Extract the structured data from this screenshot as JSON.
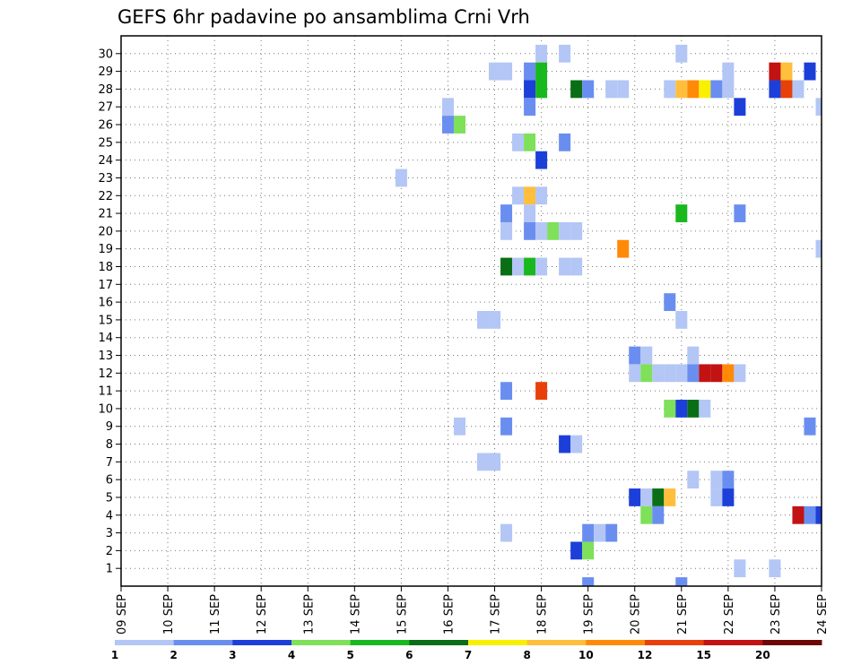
{
  "chart_data": {
    "type": "heatmap",
    "title": "GEFS 6hr padavine po ansamblima Crni Vrh",
    "x_tick_labels": [
      "09 SEP",
      "10 SEP",
      "11 SEP",
      "12 SEP",
      "13 SEP",
      "14 SEP",
      "15 SEP",
      "16 SEP",
      "17 SEP",
      "18 SEP",
      "19 SEP",
      "20 SEP",
      "21 SEP",
      "22 SEP",
      "23 SEP",
      "24 SEP"
    ],
    "y_tick_labels": [
      "1",
      "2",
      "3",
      "4",
      "5",
      "6",
      "7",
      "8",
      "9",
      "10",
      "11",
      "12",
      "13",
      "14",
      "15",
      "16",
      "17",
      "18",
      "19",
      "20",
      "21",
      "22",
      "23",
      "24",
      "25",
      "26",
      "27",
      "28",
      "29",
      "30"
    ],
    "x_step_hours": 6,
    "grid": true,
    "colorbar": {
      "levels": [
        "1",
        "2",
        "3",
        "4",
        "5",
        "6",
        "7",
        "8",
        "10",
        "12",
        "15",
        "20"
      ],
      "colors": [
        "#b3c6f5",
        "#6a8ef0",
        "#1c3fd9",
        "#7fe05a",
        "#19b81e",
        "#0a6e16",
        "#f9f000",
        "#ffbe3c",
        "#ff8a08",
        "#e8400a",
        "#c21212",
        "#6e0808"
      ]
    },
    "cells": [
      {
        "member": 30,
        "x": "18 SEP 00",
        "v": 1
      },
      {
        "member": 30,
        "x": "18 SEP 12",
        "v": 1
      },
      {
        "member": 30,
        "x": "21 SEP 00",
        "v": 1
      },
      {
        "member": 29,
        "x": "17 SEP 00",
        "v": 1
      },
      {
        "member": 29,
        "x": "17 SEP 06",
        "v": 1
      },
      {
        "member": 29,
        "x": "17 SEP 18",
        "v": 2
      },
      {
        "member": 29,
        "x": "18 SEP 00",
        "v": 5
      },
      {
        "member": 29,
        "x": "22 SEP 00",
        "v": 1
      },
      {
        "member": 29,
        "x": "23 SEP 00",
        "v": 15
      },
      {
        "member": 29,
        "x": "23 SEP 06",
        "v": 8
      },
      {
        "member": 29,
        "x": "23 SEP 18",
        "v": 3
      },
      {
        "member": 28,
        "x": "17 SEP 18",
        "v": 3
      },
      {
        "member": 28,
        "x": "18 SEP 00",
        "v": 5
      },
      {
        "member": 28,
        "x": "18 SEP 18",
        "v": 6
      },
      {
        "member": 28,
        "x": "19 SEP 00",
        "v": 2
      },
      {
        "member": 28,
        "x": "19 SEP 12",
        "v": 1
      },
      {
        "member": 28,
        "x": "19 SEP 18",
        "v": 1
      },
      {
        "member": 28,
        "x": "20 SEP 18",
        "v": 1
      },
      {
        "member": 28,
        "x": "21 SEP 00",
        "v": 8
      },
      {
        "member": 28,
        "x": "21 SEP 06",
        "v": 10
      },
      {
        "member": 28,
        "x": "21 SEP 12",
        "v": 7
      },
      {
        "member": 28,
        "x": "21 SEP 18",
        "v": 2
      },
      {
        "member": 28,
        "x": "22 SEP 00",
        "v": 1
      },
      {
        "member": 28,
        "x": "23 SEP 00",
        "v": 3
      },
      {
        "member": 28,
        "x": "23 SEP 06",
        "v": 12
      },
      {
        "member": 28,
        "x": "23 SEP 12",
        "v": 1
      },
      {
        "member": 27,
        "x": "16 SEP 00",
        "v": 1
      },
      {
        "member": 27,
        "x": "17 SEP 18",
        "v": 2
      },
      {
        "member": 27,
        "x": "22 SEP 06",
        "v": 3
      },
      {
        "member": 27,
        "x": "24 SEP 00",
        "v": 1
      },
      {
        "member": 26,
        "x": "16 SEP 00",
        "v": 2
      },
      {
        "member": 26,
        "x": "16 SEP 06",
        "v": 4
      },
      {
        "member": 25,
        "x": "17 SEP 12",
        "v": 1
      },
      {
        "member": 25,
        "x": "17 SEP 18",
        "v": 4
      },
      {
        "member": 25,
        "x": "18 SEP 12",
        "v": 2
      },
      {
        "member": 24,
        "x": "18 SEP 00",
        "v": 3
      },
      {
        "member": 23,
        "x": "15 SEP 00",
        "v": 1
      },
      {
        "member": 22,
        "x": "17 SEP 12",
        "v": 1
      },
      {
        "member": 22,
        "x": "17 SEP 18",
        "v": 8
      },
      {
        "member": 22,
        "x": "18 SEP 00",
        "v": 1
      },
      {
        "member": 21,
        "x": "17 SEP 06",
        "v": 2
      },
      {
        "member": 21,
        "x": "17 SEP 18",
        "v": 1
      },
      {
        "member": 21,
        "x": "21 SEP 00",
        "v": 5
      },
      {
        "member": 21,
        "x": "22 SEP 06",
        "v": 2
      },
      {
        "member": 20,
        "x": "17 SEP 06",
        "v": 1
      },
      {
        "member": 20,
        "x": "17 SEP 18",
        "v": 2
      },
      {
        "member": 20,
        "x": "18 SEP 00",
        "v": 1
      },
      {
        "member": 20,
        "x": "18 SEP 06",
        "v": 4
      },
      {
        "member": 20,
        "x": "18 SEP 12",
        "v": 1
      },
      {
        "member": 20,
        "x": "18 SEP 18",
        "v": 1
      },
      {
        "member": 19,
        "x": "19 SEP 18",
        "v": 10
      },
      {
        "member": 19,
        "x": "24 SEP 00",
        "v": 1
      },
      {
        "member": 18,
        "x": "17 SEP 06",
        "v": 6
      },
      {
        "member": 18,
        "x": "17 SEP 12",
        "v": 1
      },
      {
        "member": 18,
        "x": "17 SEP 18",
        "v": 5
      },
      {
        "member": 18,
        "x": "18 SEP 00",
        "v": 1
      },
      {
        "member": 18,
        "x": "18 SEP 12",
        "v": 1
      },
      {
        "member": 18,
        "x": "18 SEP 18",
        "v": 1
      },
      {
        "member": 16,
        "x": "20 SEP 18",
        "v": 2
      },
      {
        "member": 15,
        "x": "16 SEP 18",
        "v": 1
      },
      {
        "member": 15,
        "x": "17 SEP 00",
        "v": 1
      },
      {
        "member": 15,
        "x": "21 SEP 00",
        "v": 1
      },
      {
        "member": 13,
        "x": "20 SEP 00",
        "v": 2
      },
      {
        "member": 13,
        "x": "20 SEP 06",
        "v": 1
      },
      {
        "member": 13,
        "x": "21 SEP 06",
        "v": 1
      },
      {
        "member": 12,
        "x": "20 SEP 00",
        "v": 1
      },
      {
        "member": 12,
        "x": "20 SEP 06",
        "v": 4
      },
      {
        "member": 12,
        "x": "20 SEP 12",
        "v": 1
      },
      {
        "member": 12,
        "x": "20 SEP 18",
        "v": 1
      },
      {
        "member": 12,
        "x": "21 SEP 00",
        "v": 1
      },
      {
        "member": 12,
        "x": "21 SEP 06",
        "v": 2
      },
      {
        "member": 12,
        "x": "21 SEP 12",
        "v": 15
      },
      {
        "member": 12,
        "x": "21 SEP 18",
        "v": 15
      },
      {
        "member": 12,
        "x": "22 SEP 00",
        "v": 10
      },
      {
        "member": 12,
        "x": "22 SEP 06",
        "v": 1
      },
      {
        "member": 11,
        "x": "17 SEP 06",
        "v": 2
      },
      {
        "member": 11,
        "x": "18 SEP 00",
        "v": 12
      },
      {
        "member": 10,
        "x": "20 SEP 18",
        "v": 4
      },
      {
        "member": 10,
        "x": "21 SEP 00",
        "v": 3
      },
      {
        "member": 10,
        "x": "21 SEP 06",
        "v": 6
      },
      {
        "member": 10,
        "x": "21 SEP 12",
        "v": 1
      },
      {
        "member": 9,
        "x": "16 SEP 06",
        "v": 1
      },
      {
        "member": 9,
        "x": "17 SEP 06",
        "v": 2
      },
      {
        "member": 9,
        "x": "23 SEP 18",
        "v": 2
      },
      {
        "member": 8,
        "x": "18 SEP 12",
        "v": 3
      },
      {
        "member": 8,
        "x": "18 SEP 18",
        "v": 1
      },
      {
        "member": 7,
        "x": "16 SEP 18",
        "v": 1
      },
      {
        "member": 7,
        "x": "17 SEP 00",
        "v": 1
      },
      {
        "member": 6,
        "x": "21 SEP 06",
        "v": 1
      },
      {
        "member": 6,
        "x": "21 SEP 18",
        "v": 1
      },
      {
        "member": 6,
        "x": "22 SEP 00",
        "v": 2
      },
      {
        "member": 5,
        "x": "20 SEP 00",
        "v": 3
      },
      {
        "member": 5,
        "x": "20 SEP 06",
        "v": 1
      },
      {
        "member": 5,
        "x": "20 SEP 12",
        "v": 6
      },
      {
        "member": 5,
        "x": "20 SEP 18",
        "v": 8
      },
      {
        "member": 5,
        "x": "21 SEP 18",
        "v": 1
      },
      {
        "member": 5,
        "x": "22 SEP 00",
        "v": 3
      },
      {
        "member": 4,
        "x": "20 SEP 06",
        "v": 4
      },
      {
        "member": 4,
        "x": "20 SEP 12",
        "v": 2
      },
      {
        "member": 4,
        "x": "23 SEP 12",
        "v": 15
      },
      {
        "member": 4,
        "x": "23 SEP 18",
        "v": 2
      },
      {
        "member": 4,
        "x": "24 SEP 00",
        "v": 3
      },
      {
        "member": 3,
        "x": "17 SEP 06",
        "v": 1
      },
      {
        "member": 3,
        "x": "19 SEP 00",
        "v": 2
      },
      {
        "member": 3,
        "x": "19 SEP 06",
        "v": 1
      },
      {
        "member": 3,
        "x": "19 SEP 12",
        "v": 2
      },
      {
        "member": 2,
        "x": "18 SEP 18",
        "v": 3
      },
      {
        "member": 2,
        "x": "19 SEP 00",
        "v": 4
      },
      {
        "member": 1,
        "x": "22 SEP 06",
        "v": 1
      },
      {
        "member": 1,
        "x": "23 SEP 00",
        "v": 1
      },
      {
        "member": 0,
        "x": "19 SEP 00",
        "v": 2
      },
      {
        "member": 0,
        "x": "21 SEP 00",
        "v": 2
      }
    ]
  }
}
